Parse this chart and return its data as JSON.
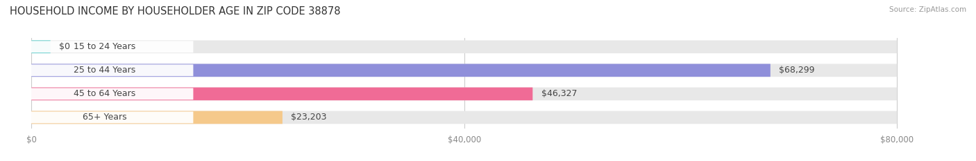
{
  "title": "HOUSEHOLD INCOME BY HOUSEHOLDER AGE IN ZIP CODE 38878",
  "source": "Source: ZipAtlas.com",
  "categories": [
    "15 to 24 Years",
    "25 to 44 Years",
    "45 to 64 Years",
    "65+ Years"
  ],
  "values": [
    0,
    68299,
    46327,
    23203
  ],
  "value_labels": [
    "$0",
    "$68,299",
    "$46,327",
    "$23,203"
  ],
  "bar_colors": [
    "#62d0cc",
    "#8f8fda",
    "#f06b96",
    "#f5c98b"
  ],
  "bar_bg_color": "#e8e8e8",
  "max_value": 80000,
  "xticks": [
    0,
    40000,
    80000
  ],
  "xtick_labels": [
    "$0",
    "$40,000",
    "$80,000"
  ],
  "background_color": "#ffffff",
  "title_fontsize": 10.5,
  "label_fontsize": 9,
  "tick_fontsize": 8.5,
  "source_fontsize": 7.5
}
